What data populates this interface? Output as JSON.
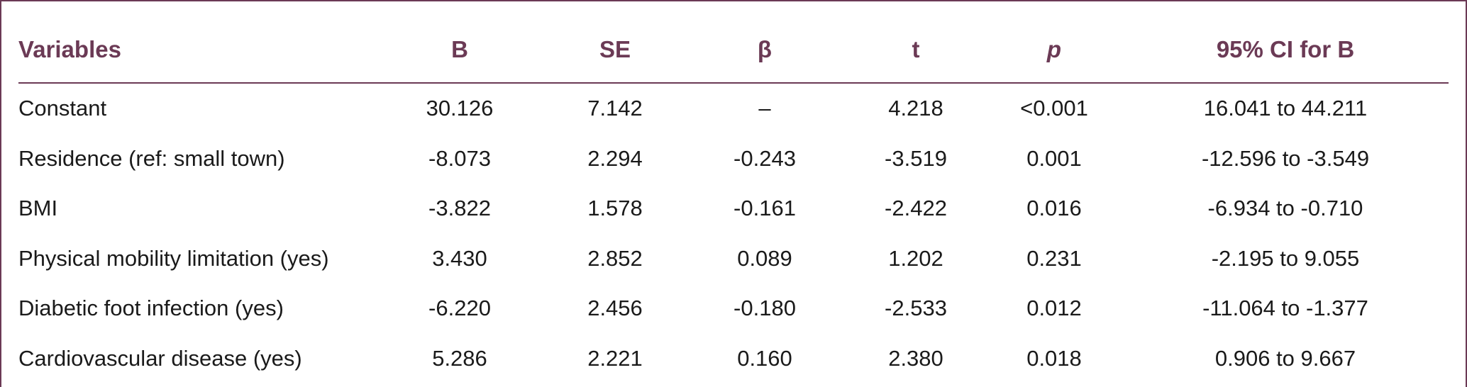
{
  "table": {
    "headers": [
      "Variables",
      "B",
      "SE",
      "β",
      "t",
      "p",
      "95% CI for B"
    ],
    "rows": [
      [
        "Constant",
        "30.126",
        "7.142",
        "–",
        "4.218",
        "<0.001",
        "16.041 to 44.211"
      ],
      [
        "Residence (ref: small town)",
        "-8.073",
        "2.294",
        "-0.243",
        "-3.519",
        "0.001",
        "-12.596 to -3.549"
      ],
      [
        "BMI",
        "-3.822",
        "1.578",
        "-0.161",
        "-2.422",
        "0.016",
        "-6.934 to -0.710"
      ],
      [
        "Physical mobility limitation (yes)",
        "3.430",
        "2.852",
        "0.089",
        "1.202",
        "0.231",
        "-2.195 to 9.055"
      ],
      [
        "Diabetic foot infection (yes)",
        "-6.220",
        "2.456",
        "-0.180",
        "-2.533",
        "0.012",
        "-11.064 to -1.377"
      ],
      [
        "Cardiovascular disease (yes)",
        "5.286",
        "2.221",
        "0.160",
        "2.380",
        "0.018",
        "0.906 to 9.667"
      ]
    ]
  },
  "colors": {
    "header_text": "#6b3a55",
    "rule": "#6b3a55",
    "body_text": "#1a1a1a"
  }
}
